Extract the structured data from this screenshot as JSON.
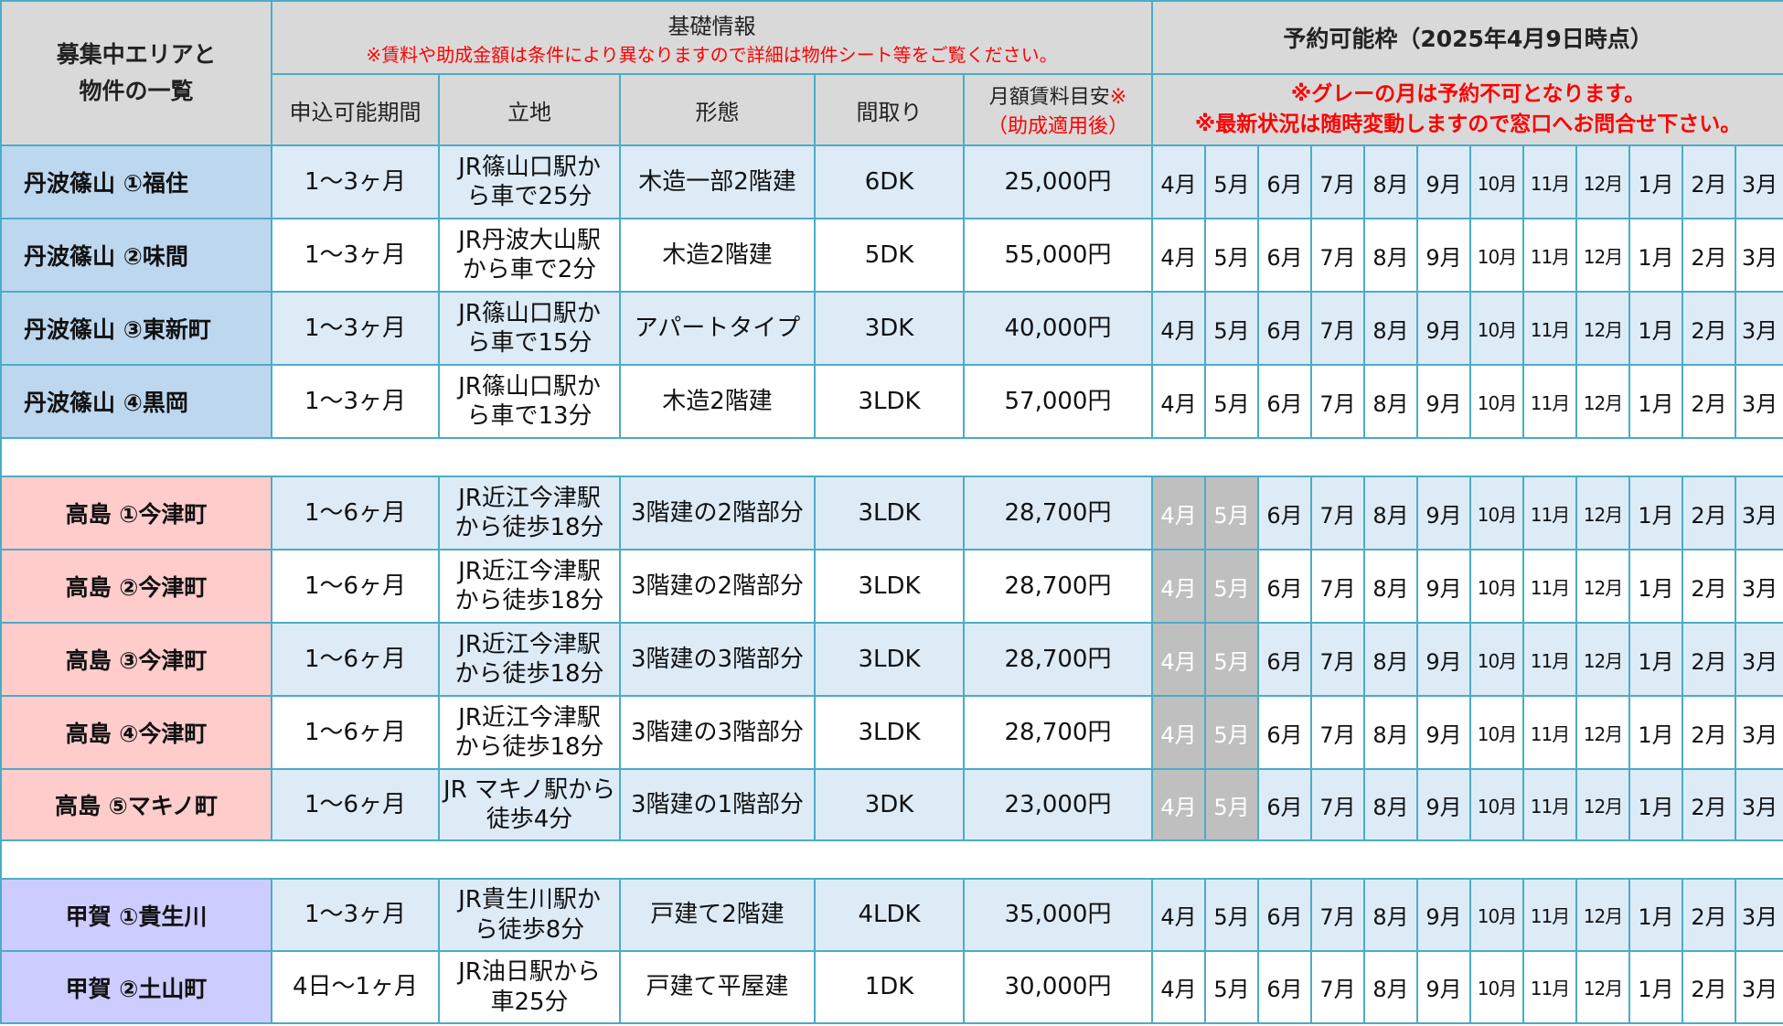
{
  "header": {
    "area_title_line1": "募集中エリアと",
    "area_title_line2": "物件の一覧",
    "basic_info": "基礎情報",
    "basic_note": "※賃料や助成金額は条件により異なりますので詳細は物件シート等をご覧ください。",
    "col_period": "申込可能期間",
    "col_location": "立地",
    "col_type": "形態",
    "col_layout": "間取り",
    "col_rent_line1": "月額賃料目安",
    "col_rent_mark": "※",
    "col_rent_line2": "（助成適用後）",
    "reservation_title": "予約可能枠（2025年4月9日時点）",
    "reservation_note1": "※グレーの月は予約不可となります。",
    "reservation_note2": "※最新状況は随時変動しますので窓口へお問合せ下さい。"
  },
  "months": [
    "4月",
    "5月",
    "6月",
    "7月",
    "8月",
    "9月",
    "10月",
    "11月",
    "12月",
    "1月",
    "2月",
    "3月"
  ],
  "colors": {
    "border": "#4bacc6",
    "header_bg": "#d9d9d9",
    "tamba_bg": "#bdd7ee",
    "takashima_bg": "#ffcccc",
    "koka_bg": "#ccccff",
    "row_light": "#ddebf7",
    "unavailable": "#bfbfbf",
    "note_red": "#ff0000"
  },
  "groups": [
    {
      "key": "tamba",
      "rows": [
        {
          "area": "丹波篠山 ①福住",
          "period": "1～3ヶ月",
          "loc1": "JR篠山口駅か",
          "loc2": "ら車で25分",
          "type": "木造一部2階建",
          "layout": "6DK",
          "rent": "25,000円",
          "unavailable": []
        },
        {
          "area": "丹波篠山 ②味間",
          "period": "1～3ヶ月",
          "loc1": "JR丹波大山駅",
          "loc2": "から車で2分",
          "type": "木造2階建",
          "layout": "5DK",
          "rent": "55,000円",
          "unavailable": []
        },
        {
          "area": "丹波篠山 ③東新町",
          "period": "1～3ヶ月",
          "loc1": "JR篠山口駅か",
          "loc2": "ら車で15分",
          "type": "アパートタイプ",
          "layout": "3DK",
          "rent": "40,000円",
          "unavailable": []
        },
        {
          "area": "丹波篠山 ④黒岡",
          "period": "1～3ヶ月",
          "loc1": "JR篠山口駅か",
          "loc2": "ら車で13分",
          "type": "木造2階建",
          "layout": "3LDK",
          "rent": "57,000円",
          "unavailable": []
        }
      ]
    },
    {
      "key": "takashima",
      "rows": [
        {
          "area": "高島 ①今津町",
          "period": "1～6ヶ月",
          "loc1": "JR近江今津駅",
          "loc2": "から徒歩18分",
          "type": "3階建の2階部分",
          "layout": "3LDK",
          "rent": "28,700円",
          "unavailable": [
            0,
            1
          ]
        },
        {
          "area": "高島 ②今津町",
          "period": "1～6ヶ月",
          "loc1": "JR近江今津駅",
          "loc2": "から徒歩18分",
          "type": "3階建の2階部分",
          "layout": "3LDK",
          "rent": "28,700円",
          "unavailable": [
            0,
            1
          ]
        },
        {
          "area": "高島 ③今津町",
          "period": "1～6ヶ月",
          "loc1": "JR近江今津駅",
          "loc2": "から徒歩18分",
          "type": "3階建の3階部分",
          "layout": "3LDK",
          "rent": "28,700円",
          "unavailable": [
            0,
            1
          ]
        },
        {
          "area": "高島 ④今津町",
          "period": "1～6ヶ月",
          "loc1": "JR近江今津駅",
          "loc2": "から徒歩18分",
          "type": "3階建の3階部分",
          "layout": "3LDK",
          "rent": "28,700円",
          "unavailable": [
            0,
            1
          ]
        },
        {
          "area": "高島 ⑤マキノ町",
          "period": "1～6ヶ月",
          "loc1": "JR マキノ駅から",
          "loc2": "徒歩4分",
          "type": "3階建の1階部分",
          "layout": "3DK",
          "rent": "23,000円",
          "unavailable": [
            0,
            1
          ]
        }
      ]
    },
    {
      "key": "koka",
      "rows": [
        {
          "area": "甲賀 ①貴生川",
          "period": "1～3ヶ月",
          "loc1": "JR貴生川駅か",
          "loc2": "ら徒歩8分",
          "type": "戸建て2階建",
          "layout": "4LDK",
          "rent": "35,000円",
          "unavailable": []
        },
        {
          "area": "甲賀 ②土山町",
          "period": "4日～1ヶ月",
          "loc1": "JR油日駅から",
          "loc2": "車25分",
          "type": "戸建て平屋建",
          "layout": "1DK",
          "rent": "30,000円",
          "unavailable": []
        }
      ]
    }
  ]
}
